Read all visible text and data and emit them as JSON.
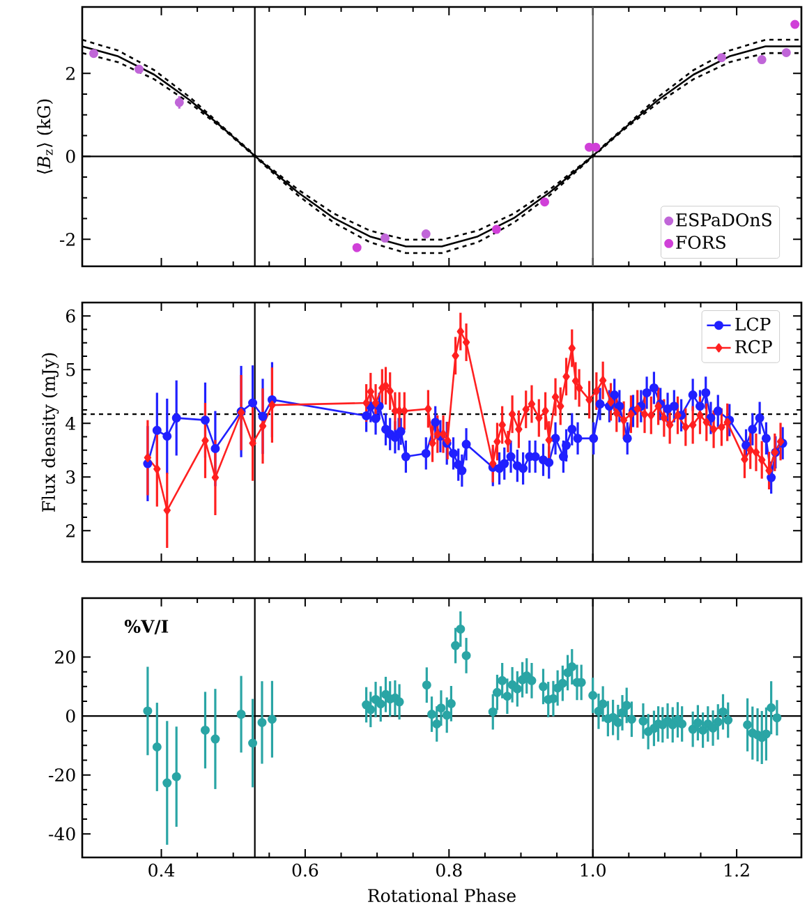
{
  "chart_data": [
    {
      "type": "scatter",
      "ylabel": "⟨*B*$_{z}$⟩ (kG)",
      "xlim": [
        0.29,
        1.29
      ],
      "xticks": [
        0.4,
        0.6,
        0.8,
        1.0,
        1.2
      ],
      "ylim": [
        -2.65,
        3.6
      ],
      "yticks": [
        -2,
        0,
        2
      ],
      "tick_labels": "y",
      "legend": "bottom right",
      "ref_lines": [
        {
          "axis": "x",
          "value": 0.53,
          "color": "#000000"
        },
        {
          "axis": "x",
          "value": 1.0,
          "color": "#555555"
        },
        {
          "axis": "y",
          "value": 0,
          "color": "#000000"
        }
      ],
      "series": [
        {
          "type": "line",
          "color": "#000000",
          "marker": "none",
          "line_style": "solid",
          "x": [
            0.29,
            0.34,
            0.39,
            0.44,
            0.49,
            0.54,
            0.59,
            0.64,
            0.69,
            0.74,
            0.79,
            0.84,
            0.89,
            0.94,
            0.99,
            1.04,
            1.09,
            1.14,
            1.19,
            1.24,
            1.29
          ],
          "values": [
            2.65,
            2.41,
            1.97,
            1.35,
            0.62,
            -0.14,
            -0.87,
            -1.49,
            -1.93,
            -2.17,
            -2.17,
            -1.93,
            -1.49,
            -0.87,
            -0.14,
            0.62,
            1.35,
            1.97,
            2.41,
            2.65,
            2.65
          ]
        },
        {
          "type": "line",
          "color": "#000000",
          "marker": "none",
          "line_style": "dashed",
          "x": [
            0.29,
            0.34,
            0.39,
            0.44,
            0.49,
            0.54,
            0.59,
            0.64,
            0.69,
            0.74,
            0.79,
            0.84,
            0.89,
            0.94,
            0.99,
            1.04,
            1.09,
            1.14,
            1.19,
            1.24,
            1.29
          ],
          "values": [
            2.81,
            2.55,
            2.08,
            1.42,
            0.64,
            -0.12,
            -0.8,
            -1.38,
            -1.79,
            -2.01,
            -2.01,
            -1.79,
            -1.38,
            -0.8,
            -0.12,
            0.64,
            1.42,
            2.08,
            2.55,
            2.81,
            2.81
          ]
        },
        {
          "type": "line",
          "color": "#000000",
          "marker": "none",
          "line_style": "dashed",
          "x": [
            0.29,
            0.34,
            0.39,
            0.44,
            0.49,
            0.54,
            0.59,
            0.64,
            0.69,
            0.74,
            0.79,
            0.84,
            0.89,
            0.94,
            0.99,
            1.04,
            1.09,
            1.14,
            1.19,
            1.24,
            1.29
          ],
          "values": [
            2.49,
            2.27,
            1.86,
            1.28,
            0.6,
            -0.16,
            -0.94,
            -1.6,
            -2.07,
            -2.33,
            -2.33,
            -2.07,
            -1.6,
            -0.94,
            -0.16,
            0.6,
            1.28,
            1.86,
            2.27,
            2.49,
            2.49
          ]
        },
        {
          "name": "ESPaDOnS",
          "color": "#c066d8",
          "marker": "circle",
          "x": [
            0.306,
            0.369,
            0.425,
            0.711,
            0.768,
            1.179,
            1.235,
            1.269
          ],
          "values": [
            2.48,
            2.1,
            1.3,
            -1.97,
            -1.87,
            2.38,
            2.33,
            2.5
          ],
          "errors": [
            0.08,
            0.08,
            0.15,
            0.08,
            0.1,
            0.08,
            0.08,
            0.08
          ]
        },
        {
          "name": "FORS",
          "color": "#d040d8",
          "marker": "circle",
          "x": [
            0.672,
            0.866,
            0.933,
            0.995,
            1.004,
            1.281
          ],
          "values": [
            -2.2,
            -1.76,
            -1.1,
            0.22,
            0.22,
            3.18
          ]
        }
      ]
    },
    {
      "type": "line",
      "ylabel": "Flux density (mJy)",
      "xlim": [
        0.29,
        1.29
      ],
      "xticks": [
        0.4,
        0.6,
        0.8,
        1.0,
        1.2
      ],
      "ylim": [
        1.42,
        6.25
      ],
      "yticks": [
        2,
        3,
        4,
        5,
        6
      ],
      "tick_labels": "y",
      "legend": "top right",
      "ref_lines": [
        {
          "axis": "x",
          "value": 0.53,
          "color": "#000000"
        },
        {
          "axis": "x",
          "value": 1.0,
          "color": "#000000"
        },
        {
          "axis": "y",
          "value": 4.17,
          "color": "#000000",
          "line_style": "dashed"
        }
      ],
      "series": [
        {
          "name": "LCP",
          "color": "#2020ff",
          "marker": "circle",
          "x": [
            0.381,
            0.394,
            0.408,
            0.421,
            0.461,
            0.475,
            0.511,
            0.527,
            0.541,
            0.554,
            0.685,
            0.691,
            0.698,
            0.703,
            0.712,
            0.718,
            0.725,
            0.73,
            0.733,
            0.74,
            0.768,
            0.781,
            0.788,
            0.797,
            0.806,
            0.813,
            0.818,
            0.824,
            0.861,
            0.87,
            0.877,
            0.886,
            0.895,
            0.903,
            0.912,
            0.92,
            0.931,
            0.939,
            0.948,
            0.959,
            0.963,
            0.971,
            0.979,
            1.001,
            1.01,
            1.023,
            1.03,
            1.037,
            1.048,
            1.056,
            1.067,
            1.075,
            1.085,
            1.094,
            1.104,
            1.113,
            1.123,
            1.139,
            1.149,
            1.157,
            1.164,
            1.174,
            1.19,
            1.213,
            1.222,
            1.232,
            1.241,
            1.248,
            1.254,
            1.264
          ],
          "values": [
            3.25,
            3.87,
            3.76,
            4.1,
            4.06,
            3.53,
            4.22,
            4.38,
            4.13,
            4.44,
            4.14,
            4.32,
            4.09,
            4.32,
            3.89,
            3.8,
            3.74,
            3.8,
            3.85,
            3.38,
            3.44,
            4.02,
            3.76,
            3.63,
            3.44,
            3.23,
            3.12,
            3.61,
            3.18,
            3.16,
            3.25,
            3.38,
            3.21,
            3.16,
            3.38,
            3.38,
            3.32,
            3.27,
            3.72,
            3.38,
            3.59,
            3.89,
            3.72,
            3.72,
            4.36,
            4.32,
            4.53,
            4.32,
            3.72,
            4.23,
            4.32,
            4.57,
            4.66,
            4.36,
            4.27,
            4.32,
            4.15,
            4.53,
            4.32,
            4.57,
            4.1,
            4.23,
            4.06,
            3.59,
            3.89,
            4.1,
            3.72,
            2.99,
            3.46,
            3.63
          ],
          "errors": [
            0.7,
            0.7,
            0.7,
            0.7,
            0.7,
            0.7,
            0.85,
            0.7,
            0.7,
            0.7,
            0.3,
            0.3,
            0.3,
            0.25,
            0.3,
            0.3,
            0.3,
            0.3,
            0.25,
            0.3,
            0.3,
            0.3,
            0.3,
            0.4,
            0.3,
            0.3,
            0.3,
            0.3,
            0.35,
            0.3,
            0.3,
            0.3,
            0.3,
            0.3,
            0.3,
            0.3,
            0.3,
            0.3,
            0.3,
            0.3,
            0.3,
            0.3,
            0.3,
            0.3,
            0.3,
            0.3,
            0.3,
            0.3,
            0.3,
            0.3,
            0.3,
            0.3,
            0.3,
            0.3,
            0.3,
            0.3,
            0.3,
            0.3,
            0.3,
            0.3,
            0.3,
            0.3,
            0.3,
            0.3,
            0.3,
            0.3,
            0.3,
            0.3,
            0.3,
            0.3
          ]
        },
        {
          "name": "RCP",
          "color": "#ff2020",
          "marker": "diamond",
          "x": [
            0.381,
            0.394,
            0.408,
            0.461,
            0.475,
            0.511,
            0.527,
            0.541,
            0.554,
            0.685,
            0.691,
            0.698,
            0.707,
            0.712,
            0.718,
            0.725,
            0.731,
            0.738,
            0.771,
            0.777,
            0.784,
            0.792,
            0.798,
            0.809,
            0.816,
            0.824,
            0.861,
            0.867,
            0.874,
            0.882,
            0.888,
            0.897,
            0.907,
            0.915,
            0.925,
            0.934,
            0.939,
            0.948,
            0.955,
            0.963,
            0.971,
            0.976,
            0.981,
            0.995,
            1.005,
            1.014,
            1.025,
            1.033,
            1.043,
            1.053,
            1.062,
            1.072,
            1.081,
            1.091,
            1.099,
            1.107,
            1.118,
            1.129,
            1.139,
            1.149,
            1.158,
            1.168,
            1.179,
            1.187,
            1.211,
            1.219,
            1.227,
            1.235,
            1.245,
            1.253,
            1.261
          ],
          "values": [
            3.36,
            3.15,
            2.38,
            3.68,
            2.99,
            4.2,
            3.63,
            3.95,
            4.34,
            4.38,
            4.59,
            4.38,
            4.66,
            4.7,
            4.6,
            4.23,
            4.23,
            4.23,
            4.27,
            3.63,
            3.8,
            3.8,
            3.68,
            5.26,
            5.71,
            5.51,
            3.25,
            3.66,
            3.97,
            3.66,
            4.17,
            3.89,
            4.26,
            4.36,
            4.1,
            4.23,
            3.69,
            4.49,
            4.32,
            4.87,
            5.4,
            4.79,
            4.66,
            4.44,
            4.6,
            4.8,
            4.4,
            4.19,
            4.06,
            4.17,
            4.27,
            4.17,
            4.15,
            4.32,
            4.1,
            3.97,
            4.15,
            3.93,
            3.97,
            4.15,
            4.02,
            3.89,
            3.93,
            4.02,
            3.33,
            3.5,
            3.46,
            3.32,
            3.12,
            3.46,
            3.66
          ],
          "errors": [
            0.7,
            0.7,
            0.7,
            0.7,
            0.7,
            0.7,
            0.7,
            0.7,
            0.7,
            0.35,
            0.35,
            0.35,
            0.35,
            0.35,
            0.35,
            0.35,
            0.35,
            0.35,
            0.35,
            0.35,
            0.35,
            0.35,
            0.35,
            0.35,
            0.35,
            0.35,
            0.35,
            0.35,
            0.35,
            0.2,
            0.35,
            0.35,
            0.35,
            0.35,
            0.35,
            0.35,
            0.35,
            0.35,
            0.35,
            0.35,
            0.35,
            0.35,
            0.35,
            0.35,
            0.35,
            0.35,
            0.35,
            0.35,
            0.35,
            0.35,
            0.35,
            0.35,
            0.35,
            0.35,
            0.35,
            0.35,
            0.35,
            0.35,
            0.35,
            0.35,
            0.35,
            0.35,
            0.35,
            0.35,
            0.35,
            0.35,
            0.35,
            0.35,
            0.35,
            0.35,
            0.35
          ]
        }
      ]
    },
    {
      "type": "scatter",
      "xlabel": "Rotational Phase",
      "annotations": [
        "%V/I"
      ],
      "xlim": [
        0.29,
        1.29
      ],
      "xticks": [
        0.4,
        0.6,
        0.8,
        {
          "value": 1.0,
          "label": "1.0"
        },
        1.2
      ],
      "ylim": [
        -48,
        40
      ],
      "yticks": [
        -40,
        -20,
        0,
        20
      ],
      "ref_lines": [
        {
          "axis": "x",
          "value": 0.53,
          "color": "#000000"
        },
        {
          "axis": "x",
          "value": 1.0,
          "color": "#000000"
        },
        {
          "axis": "y",
          "value": 0,
          "color": "#000000"
        }
      ],
      "series": [
        {
          "color": "#2aa5a5",
          "marker": "circle",
          "x": [
            0.381,
            0.394,
            0.408,
            0.421,
            0.461,
            0.475,
            0.511,
            0.527,
            0.54,
            0.554,
            0.685,
            0.691,
            0.698,
            0.705,
            0.712,
            0.718,
            0.725,
            0.731,
            0.769,
            0.776,
            0.783,
            0.789,
            0.797,
            0.803,
            0.809,
            0.816,
            0.824,
            0.861,
            0.867,
            0.874,
            0.881,
            0.888,
            0.895,
            0.902,
            0.908,
            0.915,
            0.931,
            0.938,
            0.945,
            0.951,
            0.958,
            0.965,
            0.971,
            0.978,
            0.984,
            1.0,
            1.008,
            1.014,
            1.021,
            1.028,
            1.035,
            1.041,
            1.047,
            1.054,
            1.07,
            1.077,
            1.085,
            1.091,
            1.097,
            1.104,
            1.111,
            1.118,
            1.124,
            1.139,
            1.146,
            1.153,
            1.16,
            1.167,
            1.174,
            1.181,
            1.188,
            1.215,
            1.222,
            1.229,
            1.235,
            1.241,
            1.248,
            1.256
          ],
          "values": [
            1.7,
            -10.5,
            -22.7,
            -20.6,
            -4.8,
            -7.8,
            0.6,
            -9.2,
            -2.2,
            -1.1,
            3.8,
            2.2,
            5.6,
            4.1,
            7.3,
            5.8,
            6.1,
            4.8,
            10.5,
            0.6,
            -2.7,
            2.7,
            0.3,
            4.2,
            23.9,
            29.5,
            20.5,
            1.4,
            8.0,
            12.0,
            6.7,
            10.6,
            9.2,
            12.3,
            13.6,
            12.0,
            10.0,
            5.6,
            5.9,
            9.5,
            11.1,
            14.7,
            16.7,
            11.4,
            11.4,
            7.0,
            1.6,
            4.1,
            -0.9,
            -0.5,
            -2.2,
            1.1,
            3.6,
            -1.1,
            -1.7,
            -5.3,
            -4.2,
            -2.7,
            -3.0,
            -1.7,
            -3.0,
            -1.3,
            -2.7,
            -4.5,
            -2.3,
            -4.8,
            -2.7,
            -4.1,
            -2.0,
            1.4,
            -1.4,
            -3.0,
            -5.8,
            -6.4,
            -7.3,
            -6.1,
            2.8,
            -0.6
          ],
          "errors": [
            15,
            15,
            21,
            17,
            13,
            17,
            13,
            15,
            14,
            13,
            6,
            6,
            6,
            6,
            6,
            6,
            6,
            6,
            6,
            6,
            6,
            6,
            6,
            6,
            6,
            6,
            6,
            6,
            6,
            6,
            6,
            6,
            6,
            6,
            6,
            6,
            6,
            6,
            6,
            6,
            6,
            6,
            6,
            6,
            6,
            6,
            6,
            6,
            6,
            6,
            6,
            6,
            6,
            6,
            6,
            6,
            6,
            6,
            6,
            6,
            6,
            6,
            6,
            6,
            6,
            6,
            6,
            6,
            6,
            6,
            6,
            9,
            9,
            9,
            9,
            9,
            9,
            6
          ]
        }
      ]
    }
  ]
}
